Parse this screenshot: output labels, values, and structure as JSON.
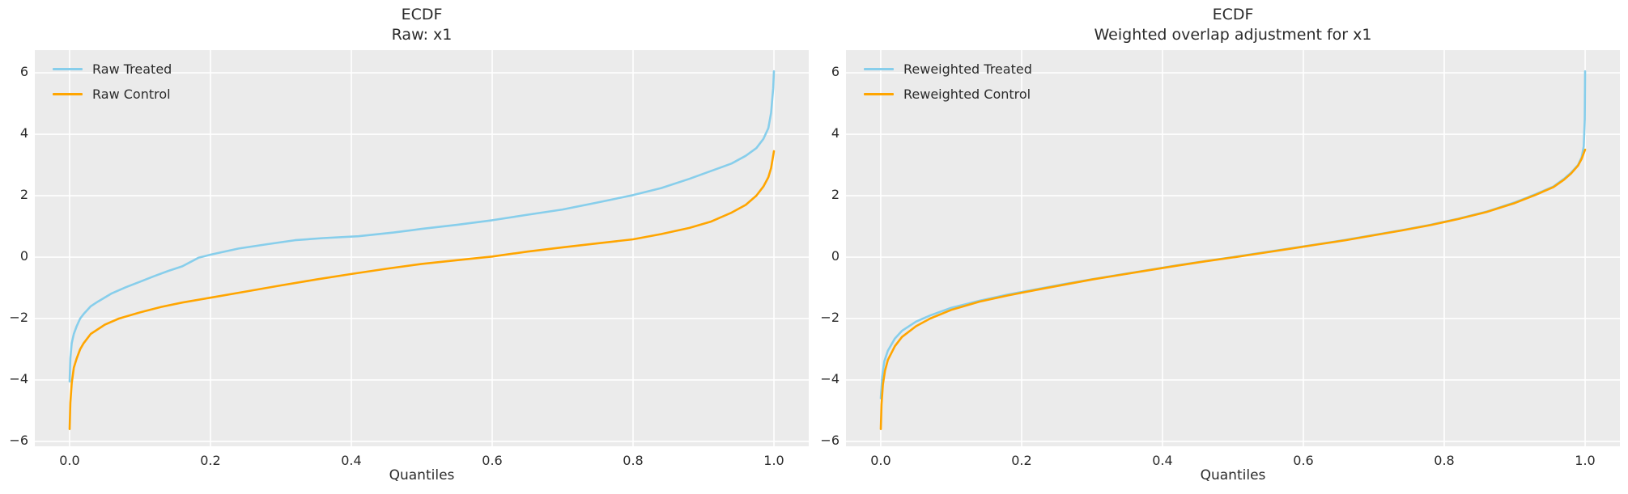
{
  "figure": {
    "background": "#ffffff",
    "axes_background": "#ebebeb",
    "grid_color": "#ffffff",
    "text_color": "#2b2b2b",
    "treated_color": "#87CEEB",
    "control_color": "#FFA500"
  },
  "chart_data": [
    {
      "type": "line",
      "title_line1": "ECDF",
      "title_line2": "Raw: x1",
      "xlabel": "Quantiles",
      "xlim": [
        -0.0494,
        1.0494
      ],
      "ylim": [
        -6.16,
        6.74
      ],
      "grid": true,
      "legend_position": "upper-left",
      "xticks": [
        0.0,
        0.2,
        0.4,
        0.6,
        0.8,
        1.0
      ],
      "xtick_labels": [
        "0.0",
        "0.2",
        "0.4",
        "0.6",
        "0.8",
        "1.0"
      ],
      "yticks": [
        6,
        4,
        2,
        0,
        -2,
        -4,
        -6
      ],
      "ytick_labels": [
        "6",
        "4",
        "2",
        "0",
        "−2",
        "−4",
        "−6"
      ],
      "legend": [
        {
          "label": "Raw Treated",
          "color": "#87CEEB"
        },
        {
          "label": "Raw Control",
          "color": "#FFA500"
        }
      ],
      "series": [
        {
          "name": "Raw Treated",
          "color": "#87CEEB",
          "points": [
            [
              0.0,
              -4.05
            ],
            [
              0.001,
              -3.3
            ],
            [
              0.003,
              -2.8
            ],
            [
              0.006,
              -2.5
            ],
            [
              0.01,
              -2.25
            ],
            [
              0.015,
              -2.0
            ],
            [
              0.02,
              -1.85
            ],
            [
              0.03,
              -1.6
            ],
            [
              0.04,
              -1.45
            ],
            [
              0.06,
              -1.18
            ],
            [
              0.08,
              -0.98
            ],
            [
              0.1,
              -0.8
            ],
            [
              0.12,
              -0.62
            ],
            [
              0.14,
              -0.45
            ],
            [
              0.16,
              -0.3
            ],
            [
              0.183,
              -0.02
            ],
            [
              0.2,
              0.08
            ],
            [
              0.24,
              0.28
            ],
            [
              0.28,
              0.42
            ],
            [
              0.32,
              0.55
            ],
            [
              0.36,
              0.62
            ],
            [
              0.41,
              0.68
            ],
            [
              0.46,
              0.8
            ],
            [
              0.5,
              0.92
            ],
            [
              0.55,
              1.05
            ],
            [
              0.6,
              1.2
            ],
            [
              0.65,
              1.38
            ],
            [
              0.7,
              1.55
            ],
            [
              0.75,
              1.78
            ],
            [
              0.8,
              2.02
            ],
            [
              0.84,
              2.25
            ],
            [
              0.88,
              2.55
            ],
            [
              0.91,
              2.8
            ],
            [
              0.94,
              3.05
            ],
            [
              0.96,
              3.3
            ],
            [
              0.975,
              3.55
            ],
            [
              0.985,
              3.85
            ],
            [
              0.992,
              4.2
            ],
            [
              0.996,
              4.7
            ],
            [
              0.999,
              5.5
            ],
            [
              1.0,
              6.05
            ]
          ]
        },
        {
          "name": "Raw Control",
          "color": "#FFA500",
          "points": [
            [
              0.0,
              -5.6
            ],
            [
              0.001,
              -4.75
            ],
            [
              0.003,
              -4.1
            ],
            [
              0.006,
              -3.6
            ],
            [
              0.01,
              -3.3
            ],
            [
              0.015,
              -3.0
            ],
            [
              0.02,
              -2.8
            ],
            [
              0.03,
              -2.5
            ],
            [
              0.05,
              -2.2
            ],
            [
              0.07,
              -2.0
            ],
            [
              0.1,
              -1.8
            ],
            [
              0.13,
              -1.62
            ],
            [
              0.16,
              -1.48
            ],
            [
              0.2,
              -1.32
            ],
            [
              0.25,
              -1.12
            ],
            [
              0.3,
              -0.92
            ],
            [
              0.35,
              -0.73
            ],
            [
              0.4,
              -0.55
            ],
            [
              0.45,
              -0.38
            ],
            [
              0.5,
              -0.22
            ],
            [
              0.55,
              -0.1
            ],
            [
              0.6,
              0.02
            ],
            [
              0.65,
              0.18
            ],
            [
              0.7,
              0.32
            ],
            [
              0.75,
              0.45
            ],
            [
              0.8,
              0.58
            ],
            [
              0.84,
              0.75
            ],
            [
              0.88,
              0.95
            ],
            [
              0.91,
              1.15
            ],
            [
              0.94,
              1.45
            ],
            [
              0.96,
              1.7
            ],
            [
              0.975,
              2.0
            ],
            [
              0.985,
              2.3
            ],
            [
              0.992,
              2.6
            ],
            [
              0.996,
              2.9
            ],
            [
              1.0,
              3.45
            ]
          ]
        }
      ]
    },
    {
      "type": "line",
      "title_line1": "ECDF",
      "title_line2": "Weighted overlap adjustment for x1",
      "xlabel": "Quantiles",
      "xlim": [
        -0.0494,
        1.0494
      ],
      "ylim": [
        -6.16,
        6.74
      ],
      "grid": true,
      "legend_position": "upper-left",
      "xticks": [
        0.0,
        0.2,
        0.4,
        0.6,
        0.8,
        1.0
      ],
      "xtick_labels": [
        "0.0",
        "0.2",
        "0.4",
        "0.6",
        "0.8",
        "1.0"
      ],
      "yticks": [
        6,
        4,
        2,
        0,
        -2,
        -4,
        -6
      ],
      "ytick_labels": [
        "6",
        "4",
        "2",
        "0",
        "−2",
        "−4",
        "−6"
      ],
      "legend": [
        {
          "label": "Reweighted Treated",
          "color": "#87CEEB"
        },
        {
          "label": "Reweighted Control",
          "color": "#FFA500"
        }
      ],
      "series": [
        {
          "name": "Reweighted Treated",
          "color": "#87CEEB",
          "points": [
            [
              0.0,
              -4.6
            ],
            [
              0.002,
              -3.9
            ],
            [
              0.005,
              -3.4
            ],
            [
              0.01,
              -3.05
            ],
            [
              0.02,
              -2.65
            ],
            [
              0.03,
              -2.4
            ],
            [
              0.05,
              -2.1
            ],
            [
              0.07,
              -1.9
            ],
            [
              0.1,
              -1.65
            ],
            [
              0.14,
              -1.42
            ],
            [
              0.18,
              -1.22
            ],
            [
              0.22,
              -1.05
            ],
            [
              0.26,
              -0.88
            ],
            [
              0.3,
              -0.72
            ],
            [
              0.34,
              -0.57
            ],
            [
              0.38,
              -0.42
            ],
            [
              0.42,
              -0.27
            ],
            [
              0.46,
              -0.13
            ],
            [
              0.5,
              0.0
            ],
            [
              0.54,
              0.14
            ],
            [
              0.58,
              0.28
            ],
            [
              0.62,
              0.42
            ],
            [
              0.66,
              0.56
            ],
            [
              0.7,
              0.72
            ],
            [
              0.74,
              0.88
            ],
            [
              0.78,
              1.05
            ],
            [
              0.82,
              1.25
            ],
            [
              0.86,
              1.48
            ],
            [
              0.9,
              1.78
            ],
            [
              0.93,
              2.05
            ],
            [
              0.955,
              2.3
            ],
            [
              0.97,
              2.55
            ],
            [
              0.98,
              2.75
            ],
            [
              0.99,
              3.0
            ],
            [
              0.995,
              3.25
            ],
            [
              0.998,
              3.6
            ],
            [
              0.9995,
              4.5
            ],
            [
              1.0,
              6.05
            ]
          ]
        },
        {
          "name": "Reweighted Control",
          "color": "#FFA500",
          "points": [
            [
              0.0,
              -5.6
            ],
            [
              0.001,
              -4.8
            ],
            [
              0.003,
              -4.15
            ],
            [
              0.006,
              -3.7
            ],
            [
              0.01,
              -3.35
            ],
            [
              0.02,
              -2.9
            ],
            [
              0.03,
              -2.6
            ],
            [
              0.05,
              -2.25
            ],
            [
              0.07,
              -2.0
            ],
            [
              0.1,
              -1.72
            ],
            [
              0.14,
              -1.45
            ],
            [
              0.18,
              -1.25
            ],
            [
              0.22,
              -1.07
            ],
            [
              0.26,
              -0.9
            ],
            [
              0.3,
              -0.73
            ],
            [
              0.34,
              -0.58
            ],
            [
              0.38,
              -0.43
            ],
            [
              0.42,
              -0.28
            ],
            [
              0.46,
              -0.14
            ],
            [
              0.5,
              -0.01
            ],
            [
              0.54,
              0.13
            ],
            [
              0.58,
              0.27
            ],
            [
              0.62,
              0.41
            ],
            [
              0.66,
              0.55
            ],
            [
              0.7,
              0.71
            ],
            [
              0.74,
              0.87
            ],
            [
              0.78,
              1.04
            ],
            [
              0.82,
              1.24
            ],
            [
              0.86,
              1.47
            ],
            [
              0.9,
              1.76
            ],
            [
              0.93,
              2.03
            ],
            [
              0.955,
              2.28
            ],
            [
              0.97,
              2.52
            ],
            [
              0.98,
              2.72
            ],
            [
              0.99,
              2.98
            ],
            [
              0.995,
              3.2
            ],
            [
              1.0,
              3.5
            ]
          ]
        }
      ]
    }
  ]
}
